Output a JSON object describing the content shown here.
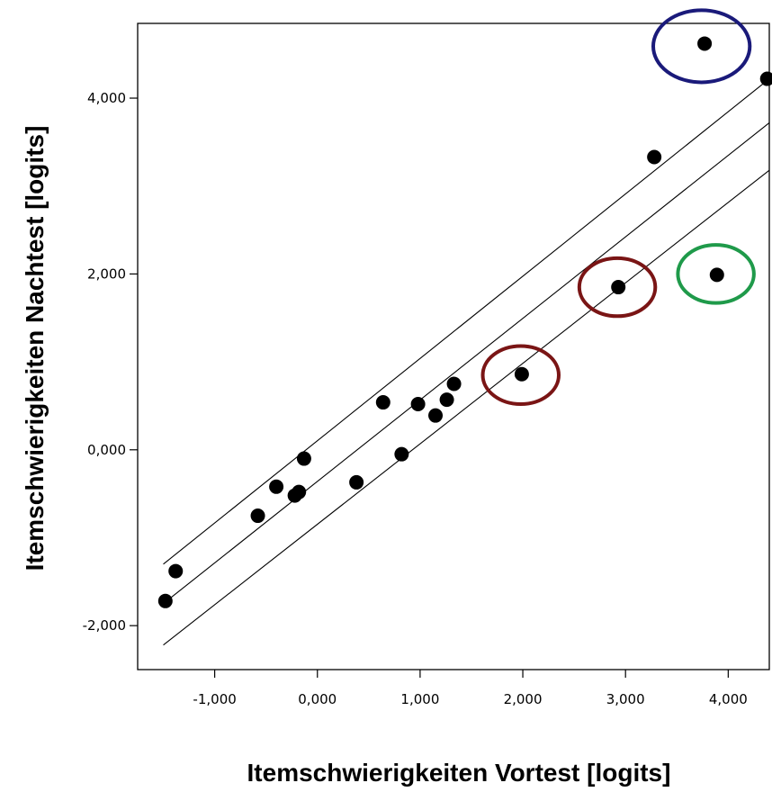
{
  "chart_data": {
    "type": "scatter",
    "title": "",
    "xlabel": "Itemschwierigkeiten Vortest [logits]",
    "ylabel": "Itemschwierigkeiten Nachtest [logits]",
    "xlim": [
      -1.75,
      4.4
    ],
    "ylim": [
      -2.5,
      4.85
    ],
    "x_ticks": [
      -1,
      0,
      1,
      2,
      3,
      4
    ],
    "x_tick_labels": [
      "-1,000",
      "0,000",
      "1,000",
      "2,000",
      "3,000",
      "4,000"
    ],
    "y_ticks": [
      -2,
      0,
      2,
      4
    ],
    "y_tick_labels": [
      "-2,000",
      "0,000",
      "2,000",
      "4,000"
    ],
    "grid": false,
    "points": [
      {
        "x": -1.48,
        "y": -1.72
      },
      {
        "x": -1.38,
        "y": -1.38
      },
      {
        "x": -0.58,
        "y": -0.75
      },
      {
        "x": -0.4,
        "y": -0.42
      },
      {
        "x": -0.22,
        "y": -0.52
      },
      {
        "x": -0.18,
        "y": -0.48
      },
      {
        "x": -0.13,
        "y": -0.1
      },
      {
        "x": 0.38,
        "y": -0.37
      },
      {
        "x": 0.64,
        "y": 0.54
      },
      {
        "x": 0.82,
        "y": -0.05
      },
      {
        "x": 0.98,
        "y": 0.52
      },
      {
        "x": 1.15,
        "y": 0.39
      },
      {
        "x": 1.26,
        "y": 0.57
      },
      {
        "x": 1.33,
        "y": 0.75
      },
      {
        "x": 1.99,
        "y": 0.86
      },
      {
        "x": 2.93,
        "y": 1.85
      },
      {
        "x": 3.28,
        "y": 3.33
      },
      {
        "x": 3.77,
        "y": 4.62
      },
      {
        "x": 3.89,
        "y": 1.99
      },
      {
        "x": 4.38,
        "y": 4.22
      }
    ],
    "lines": [
      {
        "name": "",
        "x": [
          -1.5,
          4.4
        ],
        "y": [
          -1.3,
          4.22
        ]
      },
      {
        "name": "",
        "x": [
          -1.5,
          4.4
        ],
        "y": [
          -1.75,
          3.72
        ]
      },
      {
        "name": "",
        "x": [
          -1.5,
          4.4
        ],
        "y": [
          -2.22,
          3.18
        ]
      }
    ],
    "highlight_circles": [
      {
        "x": 3.74,
        "y": 4.59,
        "rx": 0.47,
        "ry": 0.41,
        "color": "#1a1a7a"
      },
      {
        "x": 2.92,
        "y": 1.85,
        "rx": 0.37,
        "ry": 0.33,
        "color": "#7a1515"
      },
      {
        "x": 1.98,
        "y": 0.85,
        "rx": 0.37,
        "ry": 0.33,
        "color": "#7a1515"
      },
      {
        "x": 3.88,
        "y": 2.0,
        "rx": 0.37,
        "ry": 0.33,
        "color": "#1f9a4a"
      }
    ]
  }
}
